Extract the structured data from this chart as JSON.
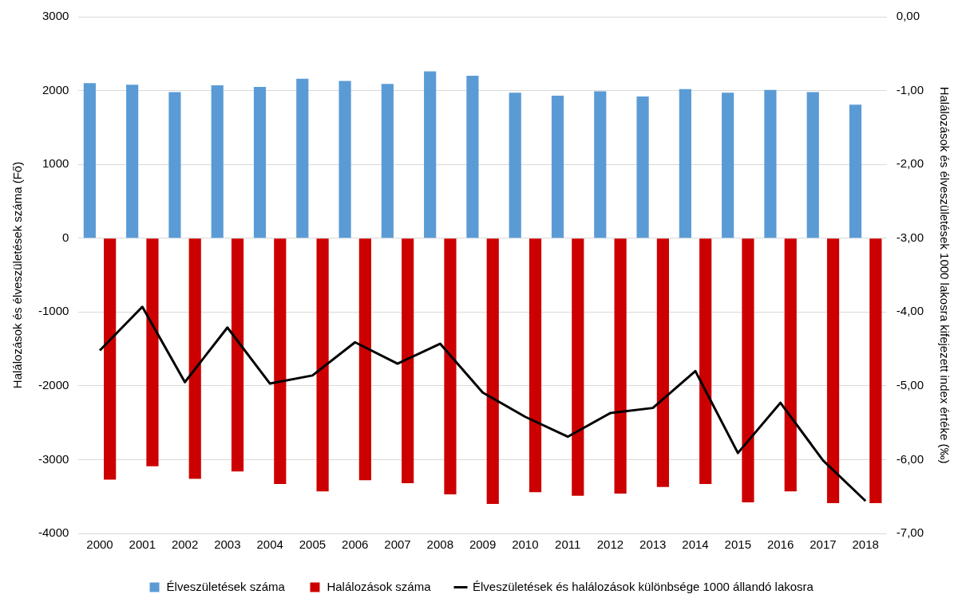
{
  "chart_data": {
    "type": "bar",
    "categories": [
      "2000",
      "2001",
      "2002",
      "2003",
      "2004",
      "2005",
      "2006",
      "2007",
      "2008",
      "2009",
      "2010",
      "2011",
      "2012",
      "2013",
      "2014",
      "2015",
      "2016",
      "2017",
      "2018"
    ],
    "ylabel": "Halálozások és élveszületések száma (Fő)",
    "y2label": "Halálozások és élveszületések 1000 lakosra kifejezett index értéke (‰)",
    "ylim": [
      -4000,
      3000
    ],
    "yticks": [
      3000,
      2000,
      1000,
      0,
      -1000,
      -2000,
      -3000,
      -4000
    ],
    "y2lim": [
      -7,
      0
    ],
    "y2ticks": [
      {
        "value": 0,
        "label": "0,00"
      },
      {
        "value": -1,
        "label": "-1,00"
      },
      {
        "value": -2,
        "label": "-2,00"
      },
      {
        "value": -3,
        "label": "-3,00"
      },
      {
        "value": -4,
        "label": "-4,00"
      },
      {
        "value": -5,
        "label": "-5,00"
      },
      {
        "value": -6,
        "label": "-6,00"
      },
      {
        "value": -7,
        "label": "-7,00"
      }
    ],
    "grid": "y",
    "legend": "bottom",
    "marker": "none",
    "line_style": "solid",
    "series": [
      {
        "name": "Élveszületések száma",
        "color": "#5b9bd5",
        "values": [
          2100,
          2080,
          1980,
          2070,
          2050,
          2160,
          2130,
          2090,
          2260,
          2200,
          1970,
          1930,
          1990,
          1920,
          2020,
          1970,
          2010,
          1980,
          1810
        ]
      },
      {
        "name": "Halálozások száma",
        "color": "#cc0000",
        "values": [
          -3270,
          -3090,
          -3260,
          -3160,
          -3330,
          -3430,
          -3280,
          -3320,
          -3470,
          -3600,
          -3440,
          -3490,
          -3460,
          -3370,
          -3330,
          -3580,
          -3430,
          -3590,
          -3590
        ]
      },
      {
        "name": "Élveszületések és halálozások különbsége 1000 állandó lakosra",
        "type": "line",
        "axis": "y2",
        "color": "#000000",
        "values": [
          -4.52,
          -3.93,
          -4.95,
          -4.21,
          -4.97,
          -4.86,
          -4.41,
          -4.7,
          -4.43,
          -5.09,
          -5.42,
          -5.69,
          -5.37,
          -5.3,
          -4.8,
          -5.91,
          -5.23,
          -6.01,
          -6.56
        ]
      }
    ]
  }
}
